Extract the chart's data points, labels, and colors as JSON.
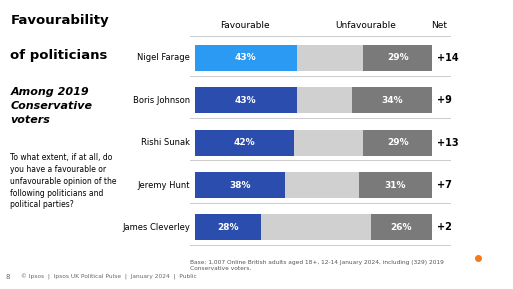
{
  "politicians": [
    "Nigel Farage",
    "Boris Johnson",
    "Rishi Sunak",
    "Jeremy Hunt",
    "James Cleverley"
  ],
  "favourable": [
    43,
    43,
    42,
    38,
    28
  ],
  "neither": [
    28,
    23,
    29,
    31,
    46
  ],
  "unfavourable": [
    29,
    34,
    29,
    31,
    26
  ],
  "net": [
    "+14",
    "+9",
    "+13",
    "+7",
    "+2"
  ],
  "fav_colors": [
    "#2A9AF3",
    "#2B4EAE",
    "#2B4EAE",
    "#2B4EAE",
    "#2B4EAE"
  ],
  "neither_color": "#D0D0D0",
  "unfav_color": "#7A7A7A",
  "title_line1": "Favourability",
  "title_line2": "of politicians",
  "subtitle": "Among 2019\nConservative\nvoters",
  "question": "To what extent, if at all, do\nyou have a favourable or\nunfavourable opinion of the\nfollowing politicians and\npolitical parties?",
  "col_header_fav": "Favourable",
  "col_header_unfav": "Unfavourable",
  "col_header_net": "Net",
  "footnote": "Base: 1,007 Online British adults aged 18+, 12-14 January 2024, including (329) 2019\nConservative voters.",
  "footer": "© Ipsos  |  Ipsos UK Political Pulse  |  January 2024  |  Public",
  "page_num": "8",
  "bg_color": "#FFFFFF",
  "divider_color": "#CCCCCC",
  "logo_bg": "#1A3A6B",
  "logo_text_color": "#FFFFFF"
}
